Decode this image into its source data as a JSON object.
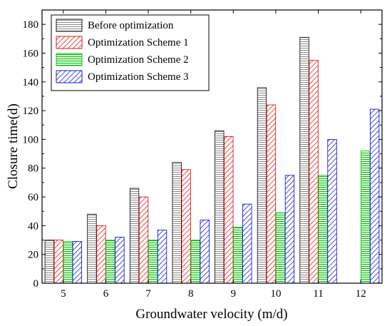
{
  "chart_data": {
    "type": "bar",
    "xlabel": "Groundwater velocity (m/d)",
    "ylabel": "Closure time(d)",
    "categories": [
      "5",
      "6",
      "7",
      "8",
      "9",
      "10",
      "11",
      "12"
    ],
    "ylim": [
      0,
      190
    ],
    "yticks": [
      0,
      20,
      40,
      60,
      80,
      100,
      120,
      140,
      160,
      180
    ],
    "legend_position": "top-left",
    "grid": false,
    "series": [
      {
        "name": "Before optimization",
        "values": [
          30,
          48,
          66,
          84,
          106,
          136,
          171,
          null
        ],
        "color": "#000000",
        "pattern": "horizontal-hatch"
      },
      {
        "name": "Optimization Scheme 1",
        "values": [
          30,
          40,
          60,
          79,
          102,
          124,
          155,
          null
        ],
        "color": "#e00000",
        "pattern": "diagonal-hatch"
      },
      {
        "name": "Optimization Scheme 2",
        "values": [
          29,
          30,
          30,
          30,
          39,
          49,
          75,
          92
        ],
        "color": "#00c000",
        "pattern": "horizontal-hatch"
      },
      {
        "name": "Optimization Scheme 3",
        "values": [
          29,
          32,
          37,
          44,
          55,
          75,
          100,
          121
        ],
        "color": "#0000e0",
        "pattern": "diagonal-hatch"
      }
    ]
  }
}
